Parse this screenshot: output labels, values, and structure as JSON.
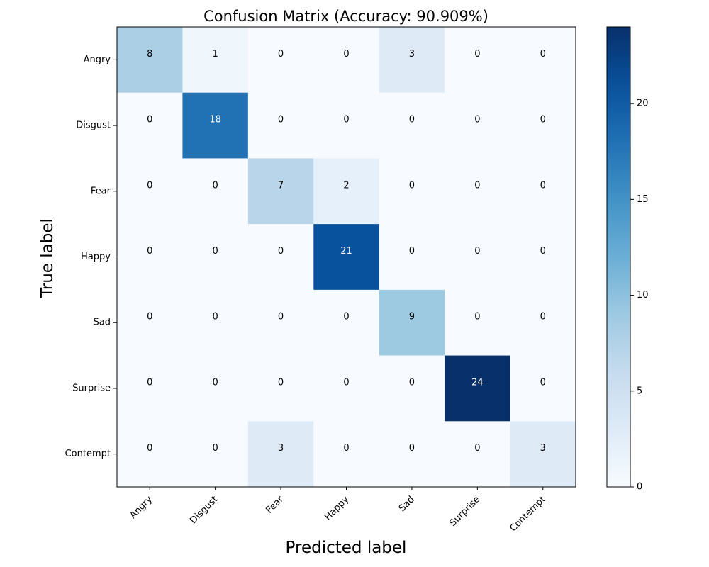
{
  "chart_data": {
    "type": "heatmap",
    "title": "Confusion Matrix (Accuracy: 90.909%)",
    "xlabel": "Predicted label",
    "ylabel": "True label",
    "x_categories": [
      "Angry",
      "Disgust",
      "Fear",
      "Happy",
      "Sad",
      "Surprise",
      "Contempt"
    ],
    "y_categories": [
      "Angry",
      "Disgust",
      "Fear",
      "Happy",
      "Sad",
      "Surprise",
      "Contempt"
    ],
    "values": [
      [
        8,
        1,
        0,
        0,
        3,
        0,
        0
      ],
      [
        0,
        18,
        0,
        0,
        0,
        0,
        0
      ],
      [
        0,
        0,
        7,
        2,
        0,
        0,
        0
      ],
      [
        0,
        0,
        0,
        21,
        0,
        0,
        0
      ],
      [
        0,
        0,
        0,
        0,
        9,
        0,
        0
      ],
      [
        0,
        0,
        0,
        0,
        0,
        24,
        0
      ],
      [
        0,
        0,
        3,
        0,
        0,
        0,
        3
      ]
    ],
    "colormap": "Blues",
    "colorbar": {
      "range": [
        0,
        24
      ],
      "ticks": [
        "0",
        "5",
        "10",
        "15",
        "20"
      ]
    },
    "grid": false
  }
}
